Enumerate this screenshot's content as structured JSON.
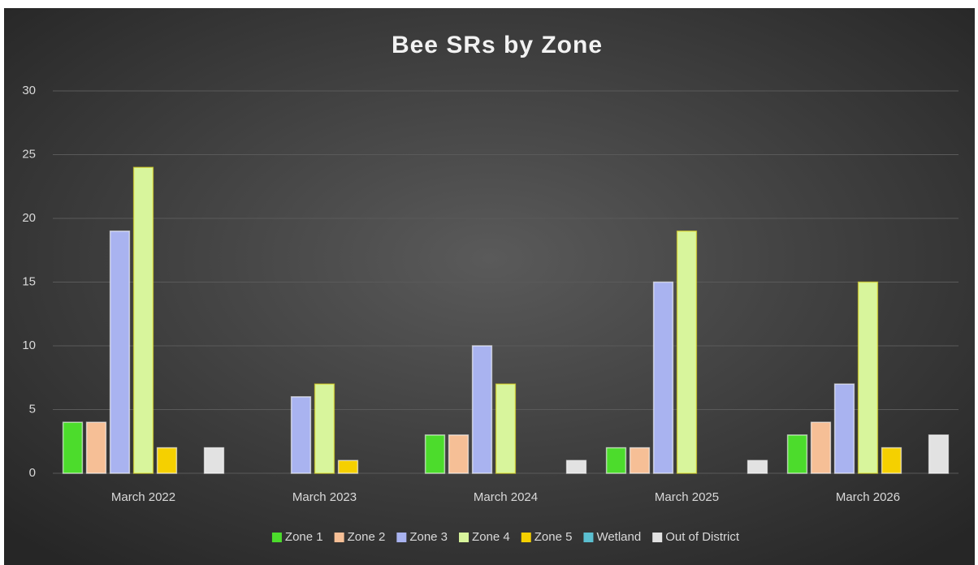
{
  "chart_data": {
    "type": "bar",
    "title": "Bee SRs by Zone",
    "categories": [
      "March 2022",
      "March 2023",
      "March 2024",
      "March 2025",
      "March 2026"
    ],
    "series": [
      {
        "name": "Zone 1",
        "color": "#4cdc2c",
        "values": [
          4,
          0,
          3,
          2,
          3
        ]
      },
      {
        "name": "Zone 2",
        "color": "#f6bf96",
        "values": [
          4,
          0,
          3,
          2,
          4
        ]
      },
      {
        "name": "Zone 3",
        "color": "#a9b3f0",
        "values": [
          19,
          6,
          10,
          15,
          7
        ]
      },
      {
        "name": "Zone 4",
        "color": "#d8f59c",
        "values": [
          24,
          7,
          7,
          19,
          15
        ]
      },
      {
        "name": "Zone 5",
        "color": "#f5d000",
        "values": [
          2,
          1,
          0,
          0,
          2
        ]
      },
      {
        "name": "Wetland",
        "color": "#5bbfd0",
        "values": [
          0,
          0,
          0,
          0,
          0
        ]
      },
      {
        "name": "Out of District",
        "color": "#e2e2e2",
        "values": [
          2,
          0,
          1,
          1,
          3
        ]
      }
    ],
    "ylim": [
      0,
      30
    ],
    "yticks": [
      0,
      5,
      10,
      15,
      20,
      25,
      30
    ],
    "grid": true,
    "legend": "bottom"
  }
}
